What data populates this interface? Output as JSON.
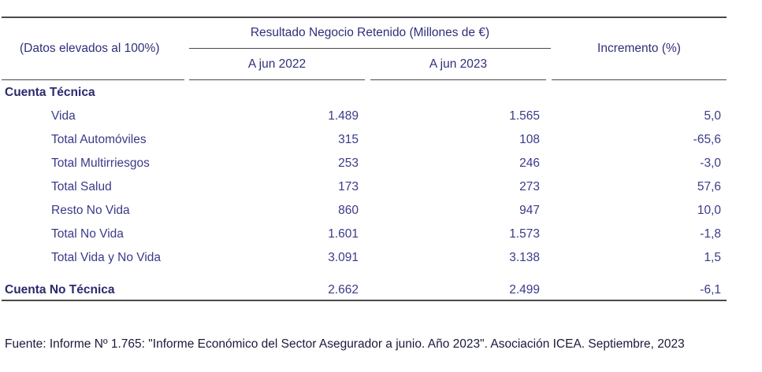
{
  "header": {
    "row_label": "(Datos elevados al 100%)",
    "group_title": "Resultado Negocio Retenido (Millones de €)",
    "col_2022": "A jun 2022",
    "col_2023": "A jun 2023",
    "col_increment": "Incremento (%)"
  },
  "section_tecnica": "Cuenta Técnica",
  "rows": [
    {
      "label": "Vida",
      "v2022": "1.489",
      "v2023": "1.565",
      "inc": "5,0"
    },
    {
      "label": "Total Automóviles",
      "v2022": "315",
      "v2023": "108",
      "inc": "-65,6"
    },
    {
      "label": "Total Multirriesgos",
      "v2022": "253",
      "v2023": "246",
      "inc": "-3,0"
    },
    {
      "label": "Total Salud",
      "v2022": "173",
      "v2023": "273",
      "inc": "57,6"
    },
    {
      "label": "Resto No Vida",
      "v2022": "860",
      "v2023": "947",
      "inc": "10,0"
    },
    {
      "label": "Total No Vida",
      "v2022": "1.601",
      "v2023": "1.573",
      "inc": "-1,8"
    },
    {
      "label": "Total Vida y No Vida",
      "v2022": "3.091",
      "v2023": "3.138",
      "inc": "1,5"
    }
  ],
  "no_tecnica": {
    "label": "Cuenta No Técnica",
    "v2022": "2.662",
    "v2023": "2.499",
    "inc": "-6,1"
  },
  "footer": "Fuente: Informe Nº 1.765: \"Informe Económico del Sector Asegurador a junio. Año 2023\". Asociación ICEA. Septiembre, 2023"
}
